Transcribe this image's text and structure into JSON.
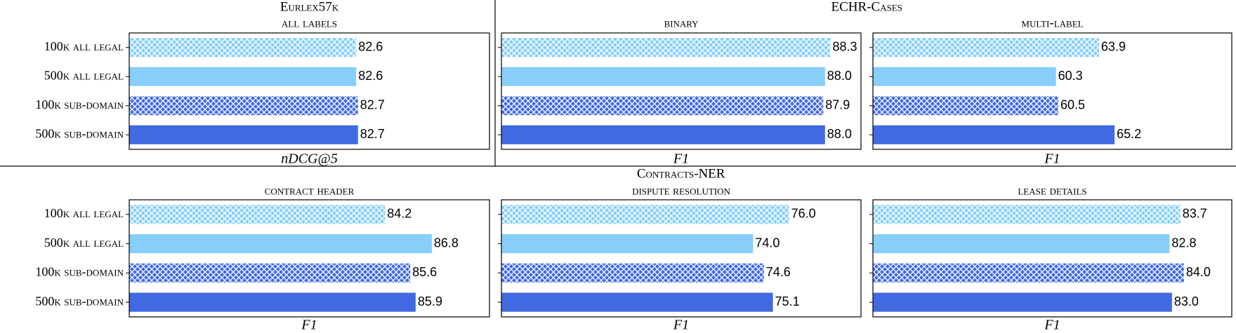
{
  "chart_data": {
    "type": "bar",
    "categories": [
      "100k all legal",
      "500k all legal",
      "100k sub-domain",
      "500k sub-domain"
    ],
    "colors": [
      "#87cefa",
      "#87cefa",
      "#4169e1",
      "#4169e1"
    ],
    "hatched": [
      true,
      false,
      true,
      false
    ],
    "groups": [
      {
        "title": "Eurlex57k"
      },
      {
        "title": "ECHR-Cases"
      },
      {
        "title": "Contracts-NER"
      }
    ],
    "panels": [
      {
        "group": 0,
        "title": "all labels",
        "xlabel": "nDCG@5",
        "xlim": [
          70,
          90
        ],
        "values": [
          82.6,
          82.6,
          82.7,
          82.7
        ],
        "value_labels": [
          "82.6",
          "82.6",
          "82.7",
          "82.7"
        ]
      },
      {
        "group": 1,
        "title": "binary",
        "xlabel": "F1",
        "xlim": [
          70,
          90
        ],
        "values": [
          88.3,
          88.0,
          87.9,
          88.0
        ],
        "value_labels": [
          "88.3",
          "88.0",
          "87.9",
          "88.0"
        ]
      },
      {
        "group": 1,
        "title": "multi-label",
        "xlabel": "F1",
        "xlim": [
          45,
          75
        ],
        "values": [
          63.9,
          60.3,
          60.5,
          65.2
        ],
        "value_labels": [
          "63.9",
          "60.3",
          "60.5",
          "65.2"
        ]
      },
      {
        "group": 2,
        "title": "contract header",
        "xlabel": "F1",
        "xlim": [
          70,
          90
        ],
        "values": [
          84.2,
          86.8,
          85.6,
          85.9
        ],
        "value_labels": [
          "84.2",
          "86.8",
          "85.6",
          "85.9"
        ]
      },
      {
        "group": 2,
        "title": "dispute resolution",
        "xlabel": "F1",
        "xlim": [
          60,
          80
        ],
        "values": [
          76.0,
          74.0,
          74.6,
          75.1
        ],
        "value_labels": [
          "76.0",
          "74.0",
          "74.6",
          "75.1"
        ]
      },
      {
        "group": 2,
        "title": "lease details",
        "xlabel": "F1",
        "xlim": [
          58,
          88
        ],
        "values": [
          83.7,
          82.8,
          84.0,
          83.0
        ],
        "value_labels": [
          "83.7",
          "82.8",
          "84.0",
          "83.0"
        ]
      }
    ]
  }
}
